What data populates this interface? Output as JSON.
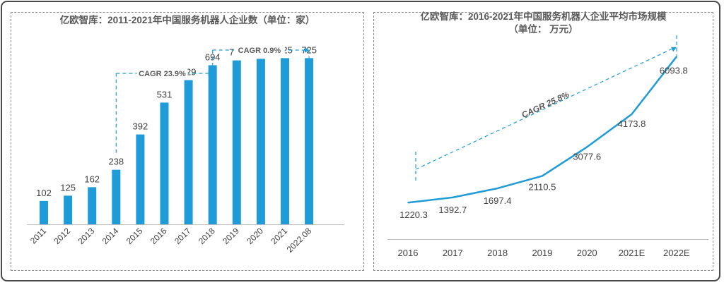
{
  "chart_data": [
    {
      "type": "bar",
      "title": "亿欧智库：2011-2021年中国服务机器人企业数（单位：家）",
      "categories": [
        "2011",
        "2012",
        "2013",
        "2014",
        "2015",
        "2016",
        "2017",
        "2018",
        "2019",
        "2020",
        "2021",
        "2022.08"
      ],
      "values": [
        102,
        125,
        162,
        238,
        392,
        531,
        629,
        694,
        715,
        722,
        725,
        725
      ],
      "ylim": [
        0,
        800
      ],
      "color": "#1f9bd7",
      "annotations": [
        {
          "label": "CAGR 23.9%",
          "from": "2014",
          "to": "2018"
        },
        {
          "label": "CAGR  0.9%",
          "from": "2018",
          "to": "2022.08"
        }
      ]
    },
    {
      "type": "line",
      "title": "亿欧智库：2016-2021年中国服务机器人企业平均市场规模",
      "subtitle": "（单位：  万元）",
      "x": [
        "2016",
        "2017",
        "2018",
        "2019",
        "2020",
        "2021E",
        "2022E"
      ],
      "values": [
        1220.3,
        1392.7,
        1697.4,
        2110.5,
        3077.6,
        4173.8,
        6093.8
      ],
      "value_labels": [
        "1220.3",
        "1392.7",
        "1697.4",
        "2110.5",
        "3077.6",
        "4173.8",
        "6093.8"
      ],
      "ylim": [
        0,
        7000
      ],
      "color": "#1f9bd7",
      "annotations": [
        {
          "label": "CAGR 25.8%",
          "from": "2016",
          "to": "2022E"
        }
      ]
    }
  ]
}
